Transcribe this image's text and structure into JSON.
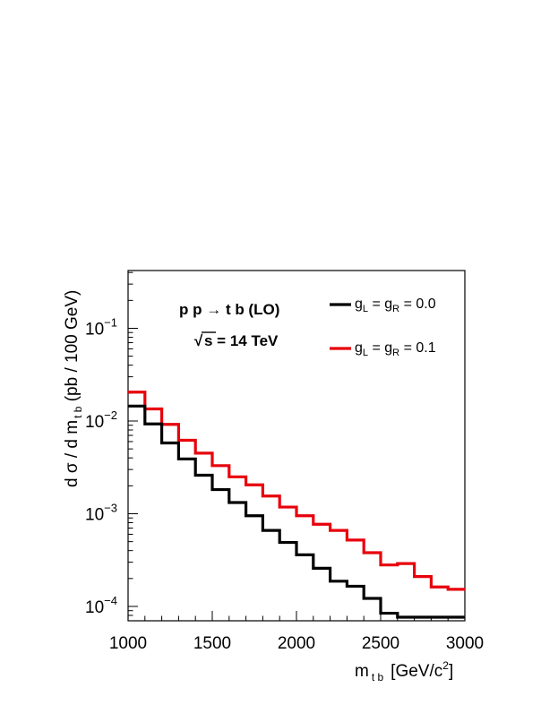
{
  "chart_data": {
    "type": "line",
    "step": true,
    "title": "",
    "xlabel": {
      "main": "m",
      "sub": "t b",
      "unit": "[GeV/c",
      "sup": "2",
      "close": "]"
    },
    "ylabel": {
      "pre": "d σ / d m",
      "sub": "t b",
      "post": " (pb / 100 GeV)"
    },
    "xlim": [
      1000,
      3000
    ],
    "ylim": [
      7e-05,
      0.42
    ],
    "yscale": "log",
    "grid": false,
    "x_ticks": [
      1000,
      1500,
      2000,
      2500,
      3000
    ],
    "x_tick_labels": [
      "1000",
      "1500",
      "2000",
      "2500",
      "3000"
    ],
    "y_ticks": [
      0.0001,
      0.001,
      0.01,
      0.1
    ],
    "y_tick_labels": [
      {
        "base": "10",
        "exp": "−4"
      },
      {
        "base": "10",
        "exp": "−3"
      },
      {
        "base": "10",
        "exp": "−2"
      },
      {
        "base": "10",
        "exp": "−1"
      }
    ],
    "bin_edges": [
      1000,
      1100,
      1200,
      1300,
      1400,
      1500,
      1600,
      1700,
      1800,
      1900,
      2000,
      2100,
      2200,
      2300,
      2400,
      2500,
      2600,
      2700,
      2800,
      2900,
      3000
    ],
    "series": [
      {
        "name": {
          "g1": "g",
          "s1": "L",
          "eq": " = g",
          "s2": "R",
          "val": " = 0.0"
        },
        "color": "#000000",
        "values": [
          0.0145,
          0.0093,
          0.0058,
          0.0039,
          0.0026,
          0.00182,
          0.00132,
          0.00095,
          0.00066,
          0.00049,
          0.00036,
          0.000258,
          0.000187,
          0.000165,
          0.000122,
          8.45e-05,
          7.65e-05,
          7.65e-05,
          7.65e-05,
          7.65e-05
        ]
      },
      {
        "name": {
          "g1": "g",
          "s1": "L",
          "eq": " = g",
          "s2": "R",
          "val": " = 0.1"
        },
        "color": "#e8000b",
        "values": [
          0.0205,
          0.0135,
          0.0092,
          0.0062,
          0.0045,
          0.0033,
          0.0025,
          0.00205,
          0.00155,
          0.00118,
          0.00095,
          0.00077,
          0.00066,
          0.00052,
          0.00038,
          0.00028,
          0.00029,
          0.00021,
          0.000162,
          0.000153
        ]
      }
    ],
    "annotations": {
      "process": "p p  → t b (LO)",
      "energy_root": "√",
      "energy": "s = 14 TeV"
    },
    "legend_position": "top-right"
  }
}
